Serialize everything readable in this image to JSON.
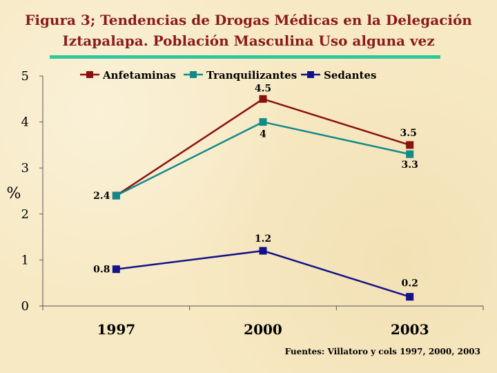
{
  "title_line1": "Figura 3; Tendencias de Drogas Médicas en  la Delegación",
  "title_line2": "Iztapalapa. Población Masculina Uso alguna vez",
  "source": "Fuentes: Villatoro y cols 1997, 2000, 2003",
  "chart_data": {
    "type": "line",
    "title": "Figura 3; Tendencias de Drogas Médicas en  la Delegación Iztapalapa. Población Masculina Uso alguna vez",
    "ylabel": "%",
    "xlabel": "",
    "categories": [
      "1997",
      "2000",
      "2003"
    ],
    "ylim": [
      0,
      5
    ],
    "yticks": [
      "0",
      "1",
      "2",
      "3",
      "4",
      "5"
    ],
    "grid": false,
    "legend_position": "top",
    "series": [
      {
        "name": "Anfetaminas",
        "color": "#8b1010",
        "values": [
          2.4,
          4.5,
          3.5
        ],
        "labels": [
          "",
          "4.5",
          "3.5"
        ]
      },
      {
        "name": "Tranquilizantes",
        "color": "#138a8a",
        "values": [
          2.4,
          4.0,
          3.3
        ],
        "labels": [
          "2.4",
          "4",
          "3.3"
        ]
      },
      {
        "name": "Sedantes",
        "color": "#12128a",
        "values": [
          0.8,
          1.2,
          0.2
        ],
        "labels": [
          "0.8",
          "1.2",
          "0.2"
        ]
      }
    ]
  }
}
